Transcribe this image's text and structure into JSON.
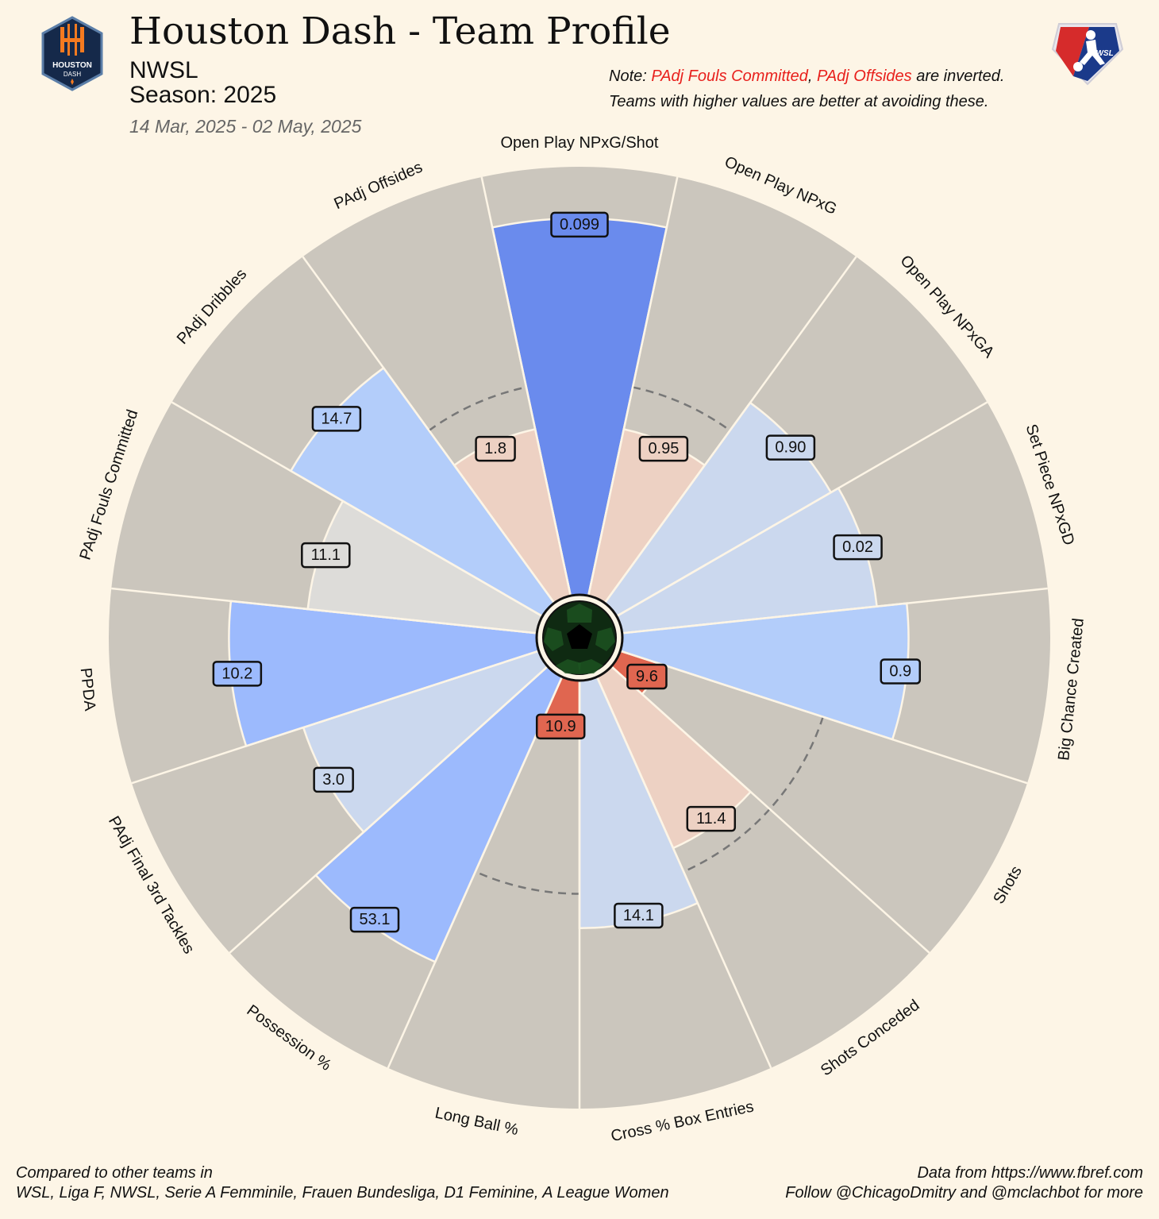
{
  "header": {
    "title": "Houston Dash - Team Profile",
    "league": "NWSL",
    "season": "Season: 2025",
    "date_range": "14 Mar, 2025 - 02 May, 2025",
    "note_prefix": "Note: ",
    "note_metric_1": "PAdj Fouls Committed",
    "note_sep": ", ",
    "note_metric_2": "PAdj Offsides",
    "note_suffix": " are inverted.",
    "note_line2": "Teams with higher values are better at avoiding these."
  },
  "logos": {
    "team_logo_text_1": "HOUSTON",
    "team_logo_text_2": "DASH",
    "league_logo_text": "NWSL"
  },
  "footer": {
    "left_line1": "Compared to other teams in",
    "left_line2": "WSL, Liga F, NWSL, Serie A Femminile, Frauen Bundesliga, D1 Feminine, A League Women",
    "right_line1": "Data from https://www.fbref.com",
    "right_line2": "Follow @ChicagoDmitry and @mclachbot for more"
  },
  "colors": {
    "background": "#fdf5e6",
    "slice_background": "#cbc6bd",
    "reference_ring": "#777777"
  },
  "chart_data": {
    "type": "radar-pizza",
    "value_range_percentile": [
      0,
      100
    ],
    "reference_ring_percentile": 50,
    "metrics": [
      {
        "label": "Open Play NPxG/Shot",
        "value": "0.099",
        "percentile": 88,
        "color": "#6a8bed"
      },
      {
        "label": "Open Play NPxG",
        "value": "0.95",
        "percentile": 40,
        "color": "#edd1c3"
      },
      {
        "label": "Open Play NPxGA",
        "value": "0.90",
        "percentile": 58,
        "color": "#cbd8ee"
      },
      {
        "label": "Set Piece NPxGD",
        "value": "0.02",
        "percentile": 60,
        "color": "#cbd8ee"
      },
      {
        "label": "Big Chance Created",
        "value": "0.9",
        "percentile": 67,
        "color": "#b3cdfa"
      },
      {
        "label": "Shots",
        "value": "9.6",
        "percentile": 10,
        "color": "#e06650"
      },
      {
        "label": "Shots Conceded",
        "value": "11.4",
        "percentile": 44,
        "color": "#edd1c3"
      },
      {
        "label": "Cross % Box Entries",
        "value": "14.1",
        "percentile": 58,
        "color": "#cbd8ee"
      },
      {
        "label": "Long Ball %",
        "value": "10.9",
        "percentile": 13,
        "color": "#e06650"
      },
      {
        "label": "Possession %",
        "value": "53.1",
        "percentile": 73,
        "color": "#9cbafd"
      },
      {
        "label": "PAdj Final 3rd Tackles",
        "value": "3.0",
        "percentile": 58,
        "color": "#cbd8ee"
      },
      {
        "label": "PPDA",
        "value": "10.2",
        "percentile": 72,
        "color": "#9cbafd"
      },
      {
        "label": "PAdj Fouls Committed",
        "value": "11.1",
        "percentile": 54,
        "color": "#dddcd9"
      },
      {
        "label": "PAdj Dribbles",
        "value": "14.7",
        "percentile": 68,
        "color": "#b3cdfa"
      },
      {
        "label": "PAdj Offsides",
        "value": "1.8",
        "percentile": 40,
        "color": "#edd1c3"
      }
    ]
  }
}
